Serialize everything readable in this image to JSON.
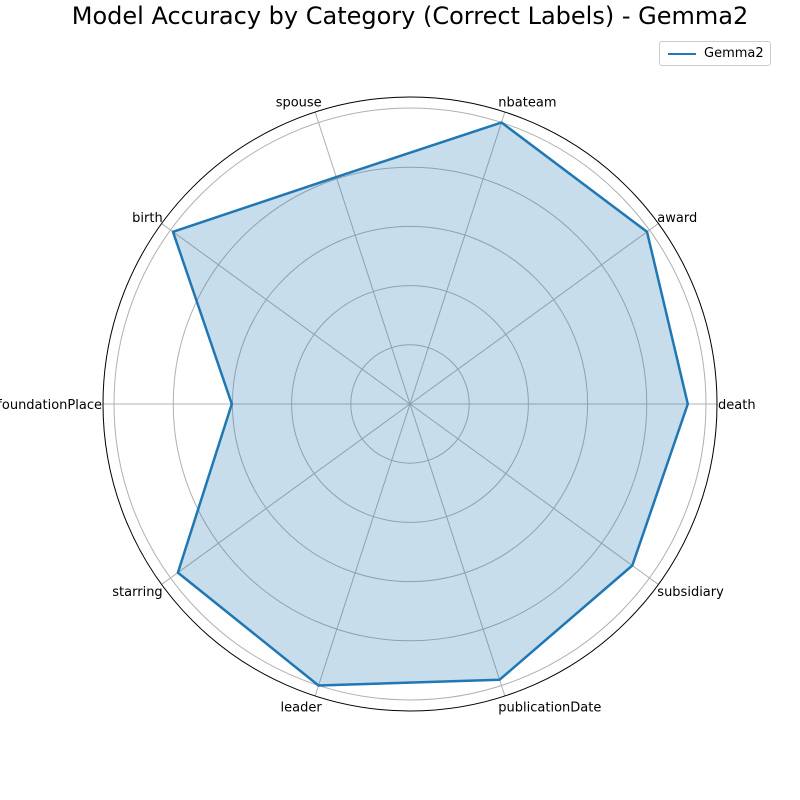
{
  "chart_data": {
    "type": "radar",
    "title": "Model Accuracy by Category (Correct Labels) - Gemma2",
    "categories": [
      "death",
      "award",
      "nbateam",
      "spouse",
      "birth",
      "foundationPlace",
      "starring",
      "leader",
      "publicationDate",
      "subsidiary"
    ],
    "series": [
      {
        "name": "Gemma2",
        "values": [
          0.92,
          0.97,
          0.98,
          0.79,
          0.97,
          0.59,
          0.95,
          0.98,
          0.96,
          0.91
        ],
        "color": "#1f77b4"
      }
    ],
    "rlim": [
      0,
      1.0
    ],
    "grid": true,
    "legend_position": "top-right"
  }
}
